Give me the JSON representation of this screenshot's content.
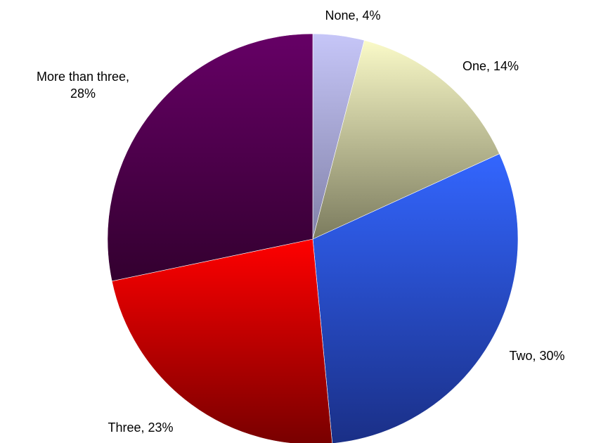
{
  "chart_data": {
    "type": "pie",
    "title": "",
    "slices": [
      {
        "label": "None, 4%",
        "name": "None",
        "value": 4,
        "color_top": "#c6c6f8",
        "color_bottom": "#8181a8"
      },
      {
        "label": "One, 14%",
        "name": "One",
        "value": 14,
        "color_top": "#fafac8",
        "color_bottom": "#7b7b5e"
      },
      {
        "label": "Two, 30%",
        "name": "Two",
        "value": 30,
        "color_top": "#3366ff",
        "color_bottom": "#1a2f86"
      },
      {
        "label": "Three, 23%",
        "name": "Three",
        "value": 23,
        "color_top": "#ff0000",
        "color_bottom": "#780000"
      },
      {
        "label": "More than three, 28%",
        "name": "More than three",
        "value": 28,
        "color_top": "#660066",
        "color_bottom": "#33002f"
      }
    ],
    "start": "top",
    "direction": "clockwise",
    "legend": "none",
    "grid": false
  }
}
